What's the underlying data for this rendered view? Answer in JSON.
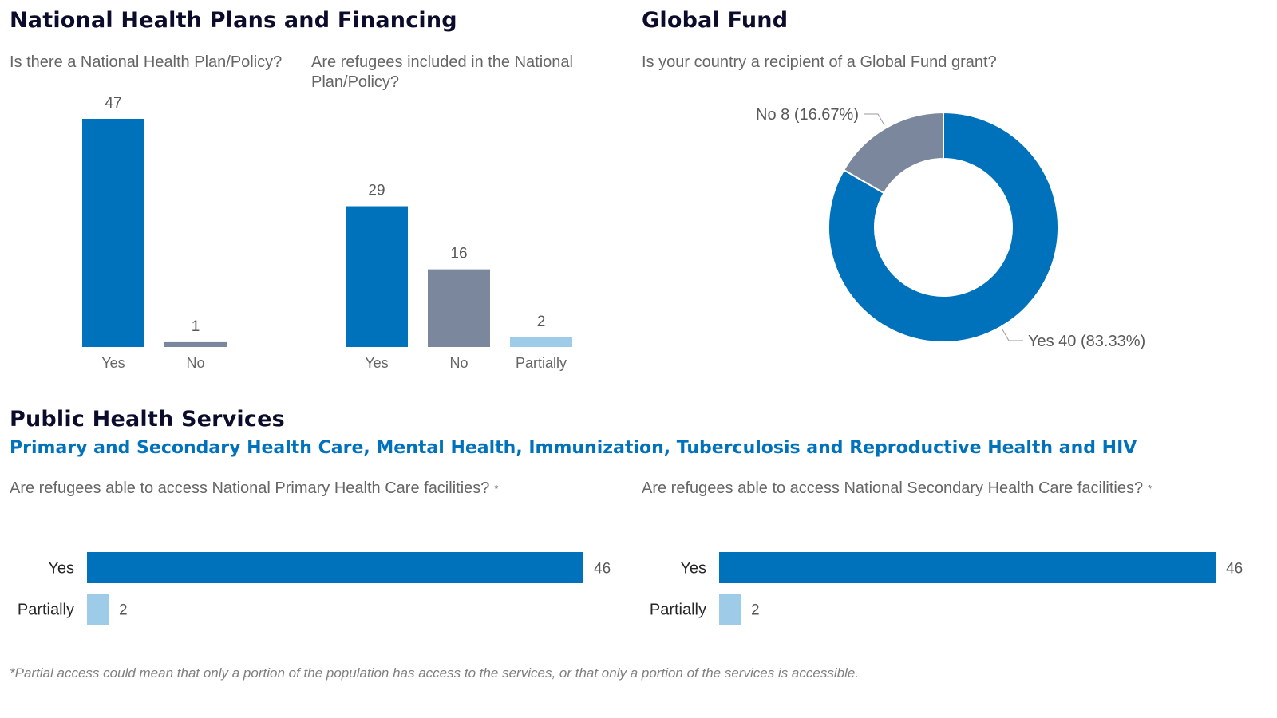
{
  "colors": {
    "yes": "#0072bc",
    "no": "#7a879d",
    "partially": "#9dcbe8",
    "title": "#0b0b2b",
    "subtitle": "#0072bc"
  },
  "national": {
    "title": "National Health Plans and Financing",
    "q1": "Is there a National Health Plan/Policy?",
    "q2": "Are refugees included in the National Plan/Policy?"
  },
  "global_fund": {
    "title": "Global Fund",
    "q": "Is your country a recipient of a Global Fund grant?"
  },
  "public_health": {
    "title": "Public Health Services",
    "subtitle": "Primary and Secondary Health Care, Mental Health, Immunization, Tuberculosis and Reproductive Health and HIV",
    "q_primary": "Are refugees able to access National Primary Health Care facilities?",
    "q_secondary": "Are refugees able to access National Secondary Health Care facilities?",
    "asterisk": "*"
  },
  "footnote": "*Partial access could mean that only a portion of the population has access to the services, or that only a portion of the services is accessible.",
  "chart_data": [
    {
      "id": "plan",
      "type": "bar",
      "categories": [
        "Yes",
        "No"
      ],
      "values": [
        47,
        1
      ],
      "ylim": [
        0,
        47
      ],
      "colors": [
        "yes",
        "no"
      ]
    },
    {
      "id": "refugees",
      "type": "bar",
      "categories": [
        "Yes",
        "No",
        "Partially"
      ],
      "values": [
        29,
        16,
        2
      ],
      "ylim": [
        0,
        47
      ],
      "colors": [
        "yes",
        "no",
        "partially"
      ]
    },
    {
      "id": "globalfund",
      "type": "pie",
      "style": "donut",
      "slices": [
        {
          "label": "Yes 40 (83.33%)",
          "value": 40,
          "color": "yes"
        },
        {
          "label": "No 8 (16.67%)",
          "value": 8,
          "color": "no"
        }
      ]
    },
    {
      "id": "primary",
      "type": "bar",
      "orientation": "horizontal",
      "categories": [
        "Yes",
        "Partially"
      ],
      "values": [
        46,
        2
      ],
      "xlim": [
        0,
        46
      ],
      "colors": [
        "yes",
        "partially"
      ]
    },
    {
      "id": "secondary",
      "type": "bar",
      "orientation": "horizontal",
      "categories": [
        "Yes",
        "Partially"
      ],
      "values": [
        46,
        2
      ],
      "xlim": [
        0,
        46
      ],
      "colors": [
        "yes",
        "partially"
      ]
    }
  ]
}
